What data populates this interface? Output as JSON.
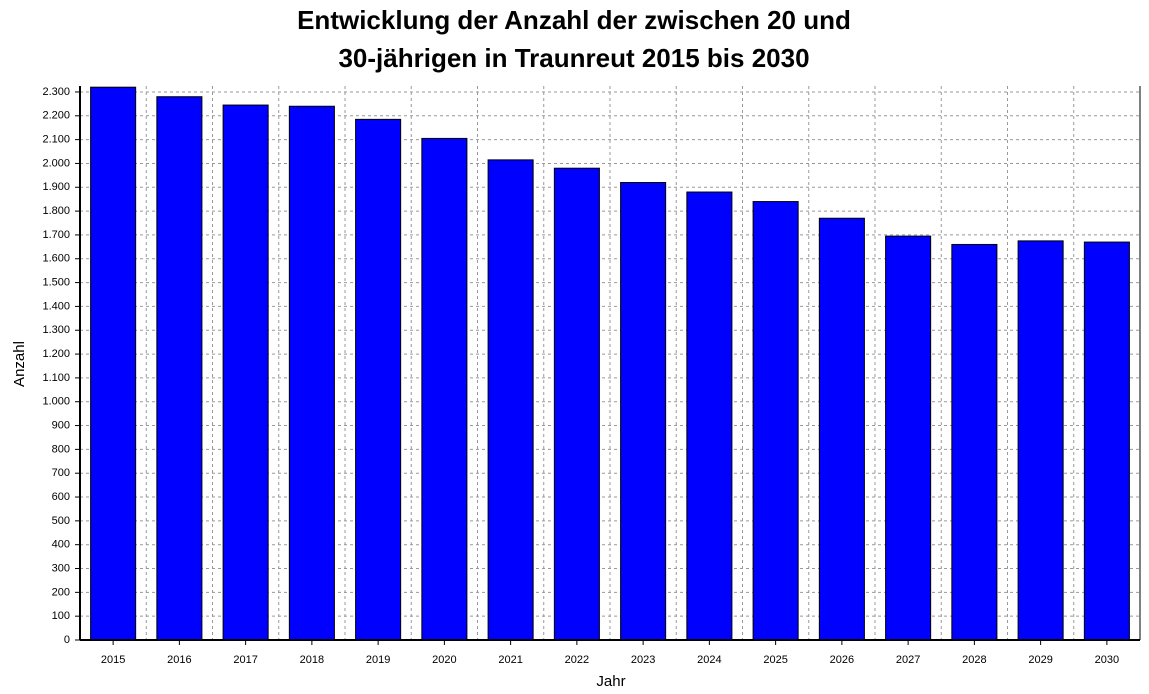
{
  "chart_data": {
    "type": "bar",
    "title": [
      "Entwicklung der Anzahl der zwischen 20 und",
      "30-jährigen in Traunreut 2015 bis 2030"
    ],
    "x_label": "Jahr",
    "y_label": "Anzahl",
    "categories": [
      "2015",
      "2016",
      "2017",
      "2018",
      "2019",
      "2020",
      "2021",
      "2022",
      "2023",
      "2024",
      "2025",
      "2026",
      "2027",
      "2028",
      "2029",
      "2030"
    ],
    "values": [
      2320,
      2280,
      2245,
      2240,
      2185,
      2105,
      2015,
      1980,
      1920,
      1880,
      1840,
      1770,
      1695,
      1660,
      1675,
      1670
    ],
    "color": "#0000ff",
    "ylim": [
      0,
      2325
    ],
    "yticks": [
      0,
      100,
      200,
      300,
      400,
      500,
      600,
      700,
      800,
      900,
      {
        "value": 1000,
        "label": "1.000"
      },
      {
        "value": 1100,
        "label": "1.100"
      },
      {
        "value": 1200,
        "label": "1.200"
      },
      {
        "value": 1300,
        "label": "1.300"
      },
      {
        "value": 1400,
        "label": "1.400"
      },
      {
        "value": 1500,
        "label": "1.500"
      },
      {
        "value": 1600,
        "label": "1.600"
      },
      {
        "value": 1700,
        "label": "1.700"
      },
      {
        "value": 1800,
        "label": "1.800"
      },
      {
        "value": 1900,
        "label": "1.900"
      },
      {
        "value": 2000,
        "label": "2.000"
      },
      {
        "value": 2100,
        "label": "2.100"
      },
      {
        "value": 2200,
        "label": "2.200"
      },
      {
        "value": 2300,
        "label": "2.300"
      }
    ],
    "grid": true
  }
}
